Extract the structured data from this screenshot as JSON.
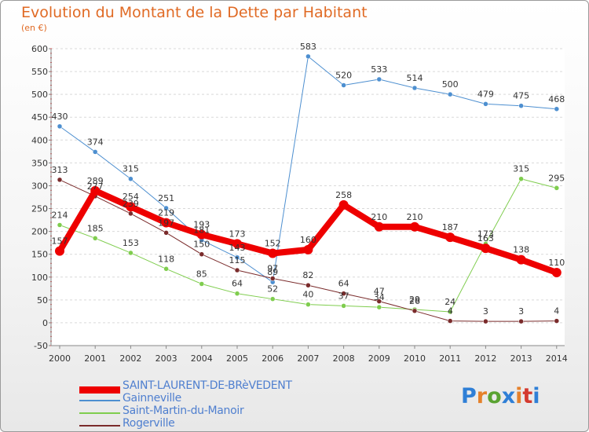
{
  "header": {
    "title": "Evolution du Montant de la Dette par Habitant",
    "subtitle": "(en €)"
  },
  "logo": {
    "text": "Proxiti",
    "colors": [
      "#2f7fd6",
      "#e5812b",
      "#5aa332",
      "#2f7fd6",
      "#e5812b",
      "#d43a2f",
      "#2f7fd6"
    ]
  },
  "chart_data": {
    "type": "line",
    "x": [
      "2000",
      "2001",
      "2002",
      "2003",
      "2004",
      "2005",
      "2006",
      "2007",
      "2008",
      "2009",
      "2010",
      "2011",
      "2012",
      "2013",
      "2014"
    ],
    "ylim": [
      -50,
      600
    ],
    "yticks": [
      -50,
      0,
      50,
      100,
      150,
      200,
      250,
      300,
      350,
      400,
      450,
      500,
      550,
      600
    ],
    "grid": true,
    "legend_position": "bottom-left",
    "series": [
      {
        "name": "SAINT-LAURENT-DE-BRèVEDENT",
        "color": "#ee0000",
        "width": 8,
        "values": [
          157,
          289,
          254,
          219,
          193,
          173,
          152,
          160,
          258,
          210,
          210,
          187,
          163,
          138,
          110
        ],
        "labels": [
          "157",
          "289",
          "254",
          "219",
          "193",
          "173",
          "152",
          "160",
          "258",
          "210",
          "210",
          "187",
          "163",
          "138",
          "110"
        ]
      },
      {
        "name": "Gainneville",
        "color": "#4d8fd0",
        "width": 1,
        "values": [
          430,
          374,
          315,
          251,
          181,
          143,
          89,
          583,
          520,
          533,
          514,
          500,
          479,
          475,
          468
        ],
        "labels": [
          "430",
          "374",
          "315",
          "251",
          "181",
          "143",
          "89",
          "583",
          "520",
          "533",
          "514",
          "500",
          "479",
          "475",
          "468"
        ]
      },
      {
        "name": "Saint-Martin-du-Manoir",
        "color": "#7fcd4e",
        "width": 1,
        "values": [
          214,
          185,
          153,
          118,
          85,
          64,
          52,
          40,
          37,
          34,
          29,
          24,
          173,
          315,
          295
        ],
        "labels": [
          "214",
          "185",
          "153",
          "118",
          "85",
          "64",
          "52",
          "40",
          "37",
          "34",
          "29",
          "24",
          "173",
          "315",
          "295"
        ]
      },
      {
        "name": "Rogerville",
        "color": "#7a2b2b",
        "width": 1,
        "values": [
          313,
          277,
          239,
          197,
          150,
          115,
          97,
          82,
          64,
          47,
          26,
          4,
          3,
          3,
          4
        ],
        "labels": [
          "313",
          "277",
          "239",
          "197",
          "150",
          "115",
          "97",
          "82",
          "64",
          "47",
          "26",
          "4",
          "3",
          "3",
          "4"
        ]
      }
    ]
  }
}
